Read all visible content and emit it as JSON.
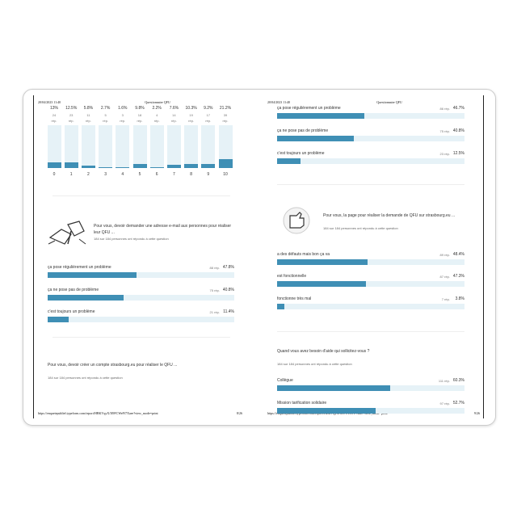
{
  "pages": [
    {
      "date": "20/04/2023 11:40",
      "title": "Questionnaire QFU",
      "footer_url": "https://enquetepubliel.typeform.com/report/HBKVqyX/3l9FCWeFf7Xaee?view_mode=print",
      "page_number": "8/26",
      "histogram": {
        "categories": [
          "0",
          "1",
          "2",
          "3",
          "4",
          "5",
          "6",
          "7",
          "8",
          "9",
          "10"
        ],
        "values": [
          13,
          12.5,
          5.8,
          2.7,
          1.6,
          9.8,
          2.2,
          7.6,
          10.3,
          9.2,
          21.2
        ],
        "value_labels": [
          "13%",
          "12.5%",
          "5.8%",
          "2.7%",
          "1.6%",
          "9.8%",
          "2.2%",
          "7.6%",
          "10.3%",
          "9.2%",
          "21.2%"
        ],
        "counts": [
          24,
          23,
          11,
          5,
          3,
          18,
          4,
          14,
          19,
          17,
          39
        ],
        "unit": "rép."
      },
      "questions": [
        {
          "text": "Pour vous, devoir demander une adresse e-mail aux personnes pour réaliser leur QFU ...",
          "responses": "184 sur 184 personnes ont répondu à cette question",
          "options": [
            {
              "label": "ça pose régulièrement un problème",
              "count": "88 rép.",
              "value": 47.8,
              "value_label": "47.8%"
            },
            {
              "label": "ça ne pose pas de problème",
              "count": "75 rép.",
              "value": 40.8,
              "value_label": "40.8%"
            },
            {
              "label": "c'est toujours un problème",
              "count": "21 rép.",
              "value": 11.4,
              "value_label": "11.4%"
            }
          ]
        },
        {
          "text": "Pour vous, devoir créer un compte strasbourg.eu pour réaliser le QFU ...",
          "responses": "184 sur 184 personnes ont répondu à cette question",
          "options": []
        }
      ]
    },
    {
      "date": "20/04/2023 11:40",
      "title": "Questionnaire QFU",
      "footer_url": "https://enquetepubliel.typeform.com/report/HBKVqyX/3l9FCWeFf7Xaee?view_mode=print",
      "page_number": "9/26",
      "questions": [
        {
          "options": [
            {
              "label": "ça pose régulièrement un problème",
              "count": "86 rép.",
              "value": 46.7,
              "value_label": "46.7%"
            },
            {
              "label": "ça ne pose pas de problème",
              "count": "75 rép.",
              "value": 40.8,
              "value_label": "40.8%"
            },
            {
              "label": "c'est toujours un problème",
              "count": "23 rép.",
              "value": 12.5,
              "value_label": "12.5%"
            }
          ]
        },
        {
          "text": "Pour vous, la page pour réaliser la demande de QFU sur strasbourg.eu ...",
          "responses": "184 sur 184 personnes ont répondu à cette question",
          "options": [
            {
              "label": "a des défauts mais bon ça va",
              "count": "89 rép.",
              "value": 48.4,
              "value_label": "48.4%"
            },
            {
              "label": "est fonctionnelle",
              "count": "87 rép.",
              "value": 47.3,
              "value_label": "47.3%"
            },
            {
              "label": "fonctionne très mal",
              "count": "7 rép.",
              "value": 3.8,
              "value_label": "3.8%"
            }
          ]
        },
        {
          "text": "Quand vous avez besoin d'aide qui sollicitez-vous ?",
          "responses": "184 sur 184 personnes ont répondu à cette question",
          "options": [
            {
              "label": "Collègue",
              "count": "111 rép.",
              "value": 60.3,
              "value_label": "60.3%"
            },
            {
              "label": "Mission tarification solidaire",
              "count": "97 rép.",
              "value": 52.7,
              "value_label": "52.7%"
            }
          ]
        }
      ]
    }
  ]
}
